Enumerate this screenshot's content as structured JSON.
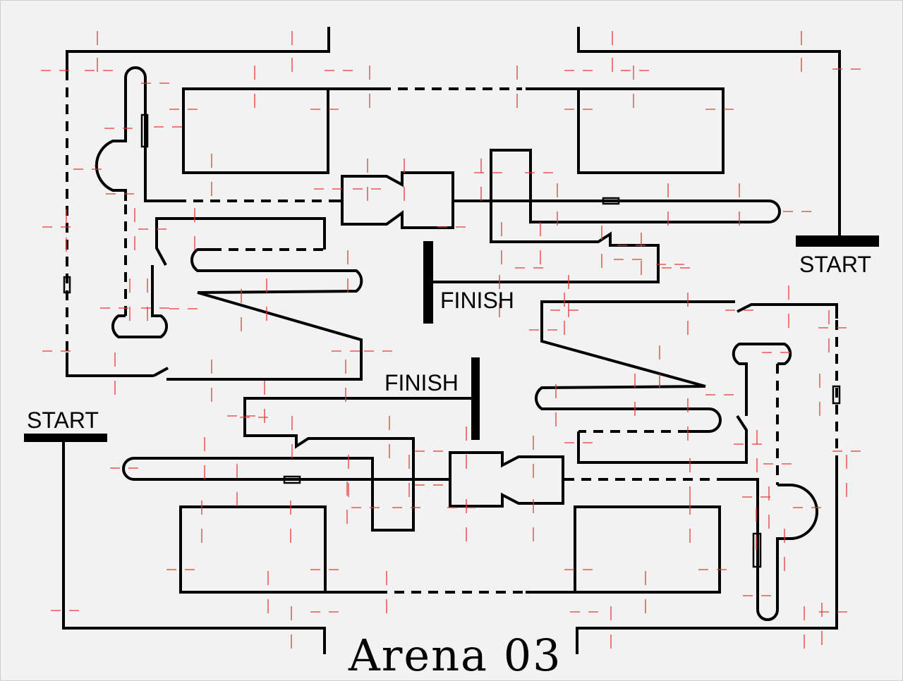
{
  "title": "Arena 03",
  "labels": {
    "start_top_right": "START",
    "start_bottom_left": "START",
    "finish_center": "FINISH",
    "finish_middle": "FINISH"
  },
  "colors": {
    "background": "#f2f2f2",
    "track": "#000000",
    "ticks": "#e53935"
  }
}
